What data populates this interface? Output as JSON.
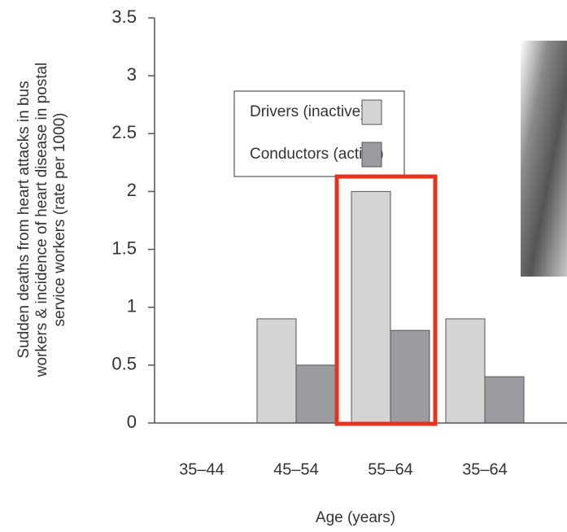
{
  "chart_data": {
    "type": "bar",
    "ylabel": [
      "Sudden deaths from heart attacks in bus",
      "workers & incidence of heart disease in postal",
      "service workers (rate per 1000)"
    ],
    "xlabel": "Age (years)",
    "categories": [
      "35–44",
      "45–54",
      "55–64",
      "35–64"
    ],
    "series": [
      {
        "name": "Drivers (inactive)",
        "color": "#d4d4d4",
        "values": [
          null,
          0.9,
          2,
          0.9
        ]
      },
      {
        "name": "Conductors (active)",
        "color": "#9c9ca0",
        "values": [
          null,
          0.5,
          0.8,
          0.4
        ]
      }
    ],
    "ylim": [
      0,
      3.5
    ],
    "yticks": [
      0,
      0.5,
      1,
      1.5,
      2,
      2.5,
      3,
      3.5
    ]
  }
}
